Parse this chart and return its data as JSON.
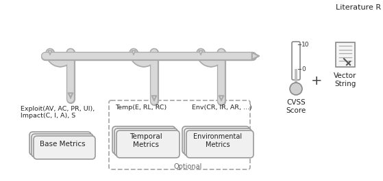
{
  "title": "Literature R",
  "bg_color": "#ffffff",
  "pipe_fill": "#d8d8d8",
  "pipe_edge": "#aaaaaa",
  "box_fill": "#f0f0f0",
  "box_edge": "#999999",
  "dash_edge": "#aaaaaa",
  "text_color": "#222222",
  "base_label": "Base Metrics",
  "temporal_label": "Temporal\nMetrics",
  "environmental_label": "Environmental\nMetrics",
  "optional_label": "Optional",
  "exploit_label": "Exploit(AV, AC, PR, UI),\nImpact(C, I, A), S",
  "temp_label": "Temp(E, RL, RC)",
  "env_label": "Env(CR, IR, AR, ...)",
  "cvss_score_label": "CVSS\nScore",
  "vector_string_label": "Vector\nString",
  "therm_10": "10",
  "therm_0": "0",
  "plus": "+"
}
